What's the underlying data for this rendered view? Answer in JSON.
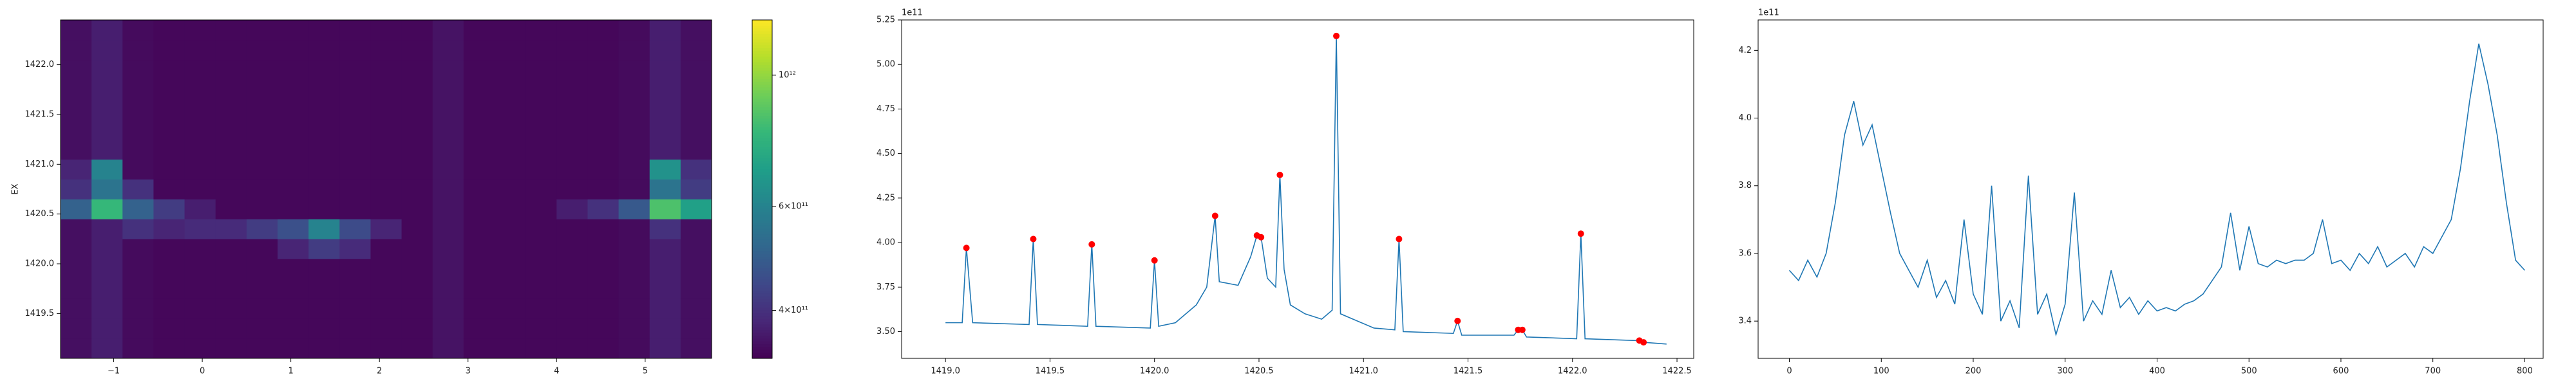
{
  "chart_data": [
    {
      "type": "heatmap",
      "ylabel": "EX",
      "colormap": "viridis",
      "x": [
        -1.425,
        -1.075,
        -0.725,
        -0.375,
        -0.025,
        0.325,
        0.675,
        1.025,
        1.375,
        1.725,
        2.075,
        2.425,
        2.775,
        3.125,
        3.475,
        3.825,
        4.175,
        4.525,
        4.875,
        5.225,
        5.575
      ],
      "y": [
        1419.15,
        1419.35,
        1419.55,
        1419.75,
        1419.95,
        1420.15,
        1420.35,
        1420.55,
        1420.75,
        1420.95,
        1421.15,
        1421.35,
        1421.55,
        1421.75,
        1421.95,
        1422.15,
        1422.35
      ],
      "z": [
        [
          350000000000.0,
          370000000000.0,
          345000000000.0,
          340000000000.0,
          340000000000.0,
          340000000000.0,
          340000000000.0,
          340000000000.0,
          340000000000.0,
          340000000000.0,
          340000000000.0,
          340000000000.0,
          355000000000.0,
          340000000000.0,
          340000000000.0,
          340000000000.0,
          340000000000.0,
          340000000000.0,
          345000000000.0,
          370000000000.0,
          350000000000.0
        ],
        [
          350000000000.0,
          370000000000.0,
          345000000000.0,
          340000000000.0,
          340000000000.0,
          340000000000.0,
          340000000000.0,
          340000000000.0,
          340000000000.0,
          340000000000.0,
          340000000000.0,
          340000000000.0,
          355000000000.0,
          340000000000.0,
          340000000000.0,
          340000000000.0,
          340000000000.0,
          340000000000.0,
          345000000000.0,
          370000000000.0,
          350000000000.0
        ],
        [
          350000000000.0,
          370000000000.0,
          345000000000.0,
          340000000000.0,
          340000000000.0,
          340000000000.0,
          340000000000.0,
          340000000000.0,
          340000000000.0,
          340000000000.0,
          340000000000.0,
          340000000000.0,
          355000000000.0,
          340000000000.0,
          340000000000.0,
          340000000000.0,
          340000000000.0,
          340000000000.0,
          345000000000.0,
          370000000000.0,
          350000000000.0
        ],
        [
          350000000000.0,
          370000000000.0,
          345000000000.0,
          340000000000.0,
          340000000000.0,
          340000000000.0,
          340000000000.0,
          340000000000.0,
          340000000000.0,
          340000000000.0,
          340000000000.0,
          340000000000.0,
          355000000000.0,
          340000000000.0,
          340000000000.0,
          340000000000.0,
          340000000000.0,
          340000000000.0,
          345000000000.0,
          370000000000.0,
          350000000000.0
        ],
        [
          350000000000.0,
          370000000000.0,
          345000000000.0,
          340000000000.0,
          340000000000.0,
          340000000000.0,
          340000000000.0,
          340000000000.0,
          340000000000.0,
          340000000000.0,
          340000000000.0,
          340000000000.0,
          355000000000.0,
          340000000000.0,
          340000000000.0,
          340000000000.0,
          340000000000.0,
          340000000000.0,
          345000000000.0,
          370000000000.0,
          350000000000.0
        ],
        [
          350000000000.0,
          370000000000.0,
          345000000000.0,
          340000000000.0,
          340000000000.0,
          340000000000.0,
          340000000000.0,
          380000000000.0,
          420000000000.0,
          390000000000.0,
          340000000000.0,
          340000000000.0,
          355000000000.0,
          340000000000.0,
          340000000000.0,
          340000000000.0,
          340000000000.0,
          340000000000.0,
          345000000000.0,
          370000000000.0,
          350000000000.0
        ],
        [
          350000000000.0,
          370000000000.0,
          400000000000.0,
          380000000000.0,
          390000000000.0,
          390000000000.0,
          420000000000.0,
          460000000000.0,
          600000000000.0,
          450000000000.0,
          380000000000.0,
          340000000000.0,
          355000000000.0,
          340000000000.0,
          340000000000.0,
          340000000000.0,
          340000000000.0,
          340000000000.0,
          345000000000.0,
          400000000000.0,
          350000000000.0
        ],
        [
          500000000000.0,
          800000000000.0,
          500000000000.0,
          420000000000.0,
          370000000000.0,
          340000000000.0,
          340000000000.0,
          340000000000.0,
          340000000000.0,
          340000000000.0,
          340000000000.0,
          340000000000.0,
          355000000000.0,
          340000000000.0,
          340000000000.0,
          340000000000.0,
          370000000000.0,
          400000000000.0,
          480000000000.0,
          850000000000.0,
          700000000000.0
        ],
        [
          400000000000.0,
          550000000000.0,
          400000000000.0,
          340000000000.0,
          340000000000.0,
          340000000000.0,
          340000000000.0,
          340000000000.0,
          340000000000.0,
          340000000000.0,
          340000000000.0,
          340000000000.0,
          355000000000.0,
          340000000000.0,
          340000000000.0,
          340000000000.0,
          340000000000.0,
          340000000000.0,
          345000000000.0,
          550000000000.0,
          420000000000.0
        ],
        [
          380000000000.0,
          600000000000.0,
          345000000000.0,
          340000000000.0,
          340000000000.0,
          340000000000.0,
          340000000000.0,
          340000000000.0,
          340000000000.0,
          340000000000.0,
          340000000000.0,
          340000000000.0,
          355000000000.0,
          340000000000.0,
          340000000000.0,
          340000000000.0,
          340000000000.0,
          340000000000.0,
          345000000000.0,
          650000000000.0,
          400000000000.0
        ],
        [
          350000000000.0,
          370000000000.0,
          345000000000.0,
          340000000000.0,
          340000000000.0,
          340000000000.0,
          340000000000.0,
          340000000000.0,
          340000000000.0,
          340000000000.0,
          340000000000.0,
          340000000000.0,
          355000000000.0,
          340000000000.0,
          340000000000.0,
          340000000000.0,
          340000000000.0,
          340000000000.0,
          345000000000.0,
          370000000000.0,
          350000000000.0
        ],
        [
          350000000000.0,
          370000000000.0,
          345000000000.0,
          340000000000.0,
          340000000000.0,
          340000000000.0,
          340000000000.0,
          340000000000.0,
          340000000000.0,
          340000000000.0,
          340000000000.0,
          340000000000.0,
          355000000000.0,
          340000000000.0,
          340000000000.0,
          340000000000.0,
          340000000000.0,
          340000000000.0,
          345000000000.0,
          370000000000.0,
          350000000000.0
        ],
        [
          350000000000.0,
          370000000000.0,
          345000000000.0,
          340000000000.0,
          340000000000.0,
          340000000000.0,
          340000000000.0,
          340000000000.0,
          340000000000.0,
          340000000000.0,
          340000000000.0,
          340000000000.0,
          355000000000.0,
          340000000000.0,
          340000000000.0,
          340000000000.0,
          340000000000.0,
          340000000000.0,
          345000000000.0,
          370000000000.0,
          350000000000.0
        ],
        [
          350000000000.0,
          370000000000.0,
          345000000000.0,
          340000000000.0,
          340000000000.0,
          340000000000.0,
          340000000000.0,
          340000000000.0,
          340000000000.0,
          340000000000.0,
          340000000000.0,
          340000000000.0,
          355000000000.0,
          340000000000.0,
          340000000000.0,
          340000000000.0,
          340000000000.0,
          340000000000.0,
          345000000000.0,
          370000000000.0,
          350000000000.0
        ],
        [
          350000000000.0,
          370000000000.0,
          345000000000.0,
          340000000000.0,
          340000000000.0,
          340000000000.0,
          340000000000.0,
          340000000000.0,
          340000000000.0,
          340000000000.0,
          340000000000.0,
          340000000000.0,
          355000000000.0,
          340000000000.0,
          340000000000.0,
          340000000000.0,
          340000000000.0,
          340000000000.0,
          345000000000.0,
          370000000000.0,
          350000000000.0
        ],
        [
          350000000000.0,
          370000000000.0,
          345000000000.0,
          340000000000.0,
          340000000000.0,
          340000000000.0,
          340000000000.0,
          340000000000.0,
          340000000000.0,
          340000000000.0,
          340000000000.0,
          340000000000.0,
          355000000000.0,
          340000000000.0,
          340000000000.0,
          340000000000.0,
          340000000000.0,
          340000000000.0,
          345000000000.0,
          370000000000.0,
          350000000000.0
        ],
        [
          350000000000.0,
          370000000000.0,
          345000000000.0,
          340000000000.0,
          340000000000.0,
          340000000000.0,
          340000000000.0,
          340000000000.0,
          340000000000.0,
          340000000000.0,
          340000000000.0,
          340000000000.0,
          355000000000.0,
          340000000000.0,
          340000000000.0,
          340000000000.0,
          340000000000.0,
          340000000000.0,
          345000000000.0,
          370000000000.0,
          350000000000.0
        ]
      ],
      "xlim": [
        -1.6,
        5.75
      ],
      "ylim": [
        1419.05,
        1422.45
      ],
      "xticks": [
        {
          "value": -1,
          "label": "−1"
        },
        0,
        1,
        2,
        3,
        4,
        5
      ],
      "yticks": [
        1419.5,
        {
          "value": 1420,
          "label": "1420.0"
        },
        1420.5,
        {
          "value": 1421,
          "label": "1421.0"
        },
        1421.5,
        {
          "value": 1422,
          "label": "1422.0"
        }
      ],
      "colorbar": {
        "scale": "log",
        "lim": [
          332000000000.0,
          1240000000000.0
        ],
        "ticks": [
          {
            "value": 400000000000.0,
            "label": "4×10¹¹"
          },
          {
            "value": 600000000000.0,
            "label": "6×10¹¹"
          },
          {
            "value": 1000000000000.0,
            "label": "10¹²"
          }
        ]
      }
    },
    {
      "type": "line",
      "y_offset_label": "1e11",
      "series": [
        {
          "color": "#1f77b4",
          "marker": "none",
          "x": [
            1419.0,
            1419.08,
            1419.1,
            1419.13,
            1419.4,
            1419.42,
            1419.44,
            1419.68,
            1419.7,
            1419.72,
            1419.98,
            1420.0,
            1420.02,
            1420.1,
            1420.2,
            1420.25,
            1420.29,
            1420.31,
            1420.4,
            1420.46,
            1420.49,
            1420.51,
            1420.54,
            1420.58,
            1420.6,
            1420.62,
            1420.65,
            1420.72,
            1420.8,
            1420.85,
            1420.87,
            1420.89,
            1420.95,
            1421.05,
            1421.15,
            1421.17,
            1421.19,
            1421.43,
            1421.45,
            1421.47,
            1421.72,
            1421.74,
            1421.76,
            1421.78,
            1422.02,
            1422.04,
            1422.06,
            1422.3,
            1422.32,
            1422.34,
            1422.45
          ],
          "values": [
            3.55,
            3.55,
            3.97,
            3.55,
            3.54,
            4.02,
            3.54,
            3.53,
            3.99,
            3.53,
            3.52,
            3.9,
            3.53,
            3.55,
            3.65,
            3.75,
            4.15,
            3.78,
            3.76,
            3.92,
            4.04,
            4.03,
            3.8,
            3.75,
            4.38,
            3.85,
            3.65,
            3.6,
            3.57,
            3.62,
            5.16,
            3.6,
            3.57,
            3.52,
            3.51,
            4.02,
            3.5,
            3.49,
            3.56,
            3.48,
            3.48,
            3.51,
            3.51,
            3.47,
            3.46,
            4.05,
            3.46,
            3.45,
            3.45,
            3.44,
            3.43
          ]
        },
        {
          "color": "red",
          "marker": "circle",
          "x": [
            1419.1,
            1419.42,
            1419.7,
            1420.0,
            1420.29,
            1420.49,
            1420.51,
            1420.6,
            1420.87,
            1421.17,
            1421.45,
            1421.74,
            1421.76,
            1422.04,
            1422.32,
            1422.34
          ],
          "values": [
            3.97,
            4.02,
            3.99,
            3.9,
            4.15,
            4.04,
            4.03,
            4.38,
            5.16,
            4.02,
            3.56,
            3.51,
            3.51,
            4.05,
            3.45,
            3.44
          ]
        }
      ],
      "xlim": [
        1418.79,
        1422.58
      ],
      "ylim": [
        3.35,
        5.25
      ],
      "xticks": [
        {
          "value": 1419,
          "label": "1419.0"
        },
        1419.5,
        {
          "value": 1420,
          "label": "1420.0"
        },
        1420.5,
        {
          "value": 1421,
          "label": "1421.0"
        },
        1421.5,
        {
          "value": 1422,
          "label": "1422.0"
        },
        1422.5
      ],
      "yticks": [
        {
          "value": 3.5,
          "label": "3.50"
        },
        3.75,
        {
          "value": 4,
          "label": "4.00"
        },
        4.25,
        {
          "value": 4.5,
          "label": "4.50"
        },
        4.75,
        {
          "value": 5,
          "label": "5.00"
        },
        5.25
      ]
    },
    {
      "type": "line",
      "y_offset_label": "1e11",
      "series": [
        {
          "color": "#1f77b4",
          "marker": "none",
          "x": [
            0,
            10,
            20,
            30,
            40,
            50,
            60,
            70,
            80,
            90,
            100,
            110,
            120,
            130,
            140,
            150,
            160,
            170,
            180,
            190,
            200,
            210,
            220,
            230,
            240,
            250,
            260,
            270,
            280,
            290,
            300,
            310,
            320,
            330,
            340,
            350,
            360,
            370,
            380,
            390,
            400,
            410,
            420,
            430,
            440,
            450,
            460,
            470,
            480,
            490,
            500,
            510,
            520,
            530,
            540,
            550,
            560,
            570,
            580,
            590,
            600,
            610,
            620,
            630,
            640,
            650,
            660,
            670,
            680,
            690,
            700,
            710,
            720,
            730,
            740,
            750,
            760,
            770,
            780,
            790,
            800
          ],
          "values": [
            3.55,
            3.52,
            3.58,
            3.53,
            3.6,
            3.75,
            3.95,
            4.05,
            3.92,
            3.98,
            3.85,
            3.72,
            3.6,
            3.55,
            3.5,
            3.58,
            3.47,
            3.52,
            3.45,
            3.7,
            3.48,
            3.42,
            3.8,
            3.4,
            3.46,
            3.38,
            3.83,
            3.42,
            3.48,
            3.36,
            3.45,
            3.78,
            3.4,
            3.46,
            3.42,
            3.55,
            3.44,
            3.47,
            3.42,
            3.46,
            3.43,
            3.44,
            3.43,
            3.45,
            3.46,
            3.48,
            3.52,
            3.56,
            3.72,
            3.55,
            3.68,
            3.57,
            3.56,
            3.58,
            3.57,
            3.58,
            3.58,
            3.6,
            3.7,
            3.57,
            3.58,
            3.55,
            3.6,
            3.57,
            3.62,
            3.56,
            3.58,
            3.6,
            3.56,
            3.62,
            3.6,
            3.65,
            3.7,
            3.85,
            4.05,
            4.22,
            4.1,
            3.95,
            3.75,
            3.58,
            3.55
          ]
        }
      ],
      "xlim": [
        -34,
        820
      ],
      "ylim": [
        3.29,
        4.29
      ],
      "xticks": [
        0,
        100,
        200,
        300,
        400,
        500,
        600,
        700,
        800
      ],
      "yticks": [
        3.4,
        3.6,
        3.8,
        {
          "value": 4,
          "label": "4.0"
        },
        4.2
      ]
    }
  ]
}
